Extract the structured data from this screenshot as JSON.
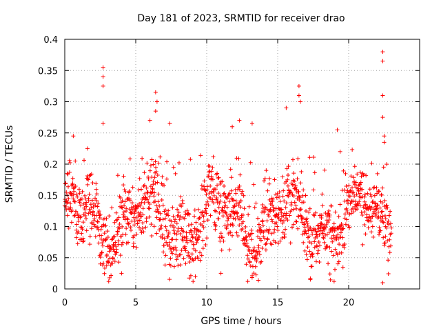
{
  "chart_data": {
    "type": "scatter",
    "title": "Day 181 of 2023, SRMTID for receiver drao",
    "xlabel": "GPS time / hours",
    "ylabel": "SRMTID / TECUs",
    "xlim": [
      0,
      25
    ],
    "ylim": [
      0,
      0.4
    ],
    "xticks": [
      0,
      5,
      10,
      15,
      20
    ],
    "xtick_labels": [
      "0",
      "5",
      "10",
      "15",
      "20"
    ],
    "yticks": [
      0,
      0.05,
      0.1,
      0.15,
      0.2,
      0.25,
      0.3,
      0.35,
      0.4
    ],
    "ytick_labels": [
      "0",
      "0.05",
      "0.1",
      "0.15",
      "0.2",
      "0.25",
      "0.3",
      "0.35",
      "0.4"
    ],
    "grid": true,
    "marker": "+",
    "color": "#ff0000",
    "series": [
      {
        "name": "SRMTID",
        "x_range": [
          0,
          23
        ],
        "typical_value": 0.11,
        "typical_spread": [
          0.05,
          0.2
        ],
        "notable_points": [
          {
            "x": 0.6,
            "y": 0.245
          },
          {
            "x": 1.6,
            "y": 0.225
          },
          {
            "x": 2.7,
            "y": 0.355
          },
          {
            "x": 2.7,
            "y": 0.34
          },
          {
            "x": 2.7,
            "y": 0.325
          },
          {
            "x": 2.7,
            "y": 0.265
          },
          {
            "x": 2.5,
            "y": 0.04
          },
          {
            "x": 4.0,
            "y": 0.025
          },
          {
            "x": 6.0,
            "y": 0.27
          },
          {
            "x": 6.4,
            "y": 0.315
          },
          {
            "x": 6.5,
            "y": 0.3
          },
          {
            "x": 6.4,
            "y": 0.285
          },
          {
            "x": 7.4,
            "y": 0.265
          },
          {
            "x": 9.2,
            "y": 0.02
          },
          {
            "x": 11.0,
            "y": 0.025
          },
          {
            "x": 11.8,
            "y": 0.26
          },
          {
            "x": 12.3,
            "y": 0.27
          },
          {
            "x": 13.2,
            "y": 0.265
          },
          {
            "x": 15.6,
            "y": 0.29
          },
          {
            "x": 16.5,
            "y": 0.325
          },
          {
            "x": 16.5,
            "y": 0.31
          },
          {
            "x": 16.6,
            "y": 0.3
          },
          {
            "x": 17.3,
            "y": 0.015
          },
          {
            "x": 19.2,
            "y": 0.255
          },
          {
            "x": 19.4,
            "y": 0.22
          },
          {
            "x": 22.4,
            "y": 0.38
          },
          {
            "x": 22.4,
            "y": 0.365
          },
          {
            "x": 22.4,
            "y": 0.31
          },
          {
            "x": 22.4,
            "y": 0.275
          },
          {
            "x": 22.5,
            "y": 0.245
          },
          {
            "x": 22.5,
            "y": 0.235
          },
          {
            "x": 22.4,
            "y": 0.01
          }
        ]
      }
    ]
  }
}
